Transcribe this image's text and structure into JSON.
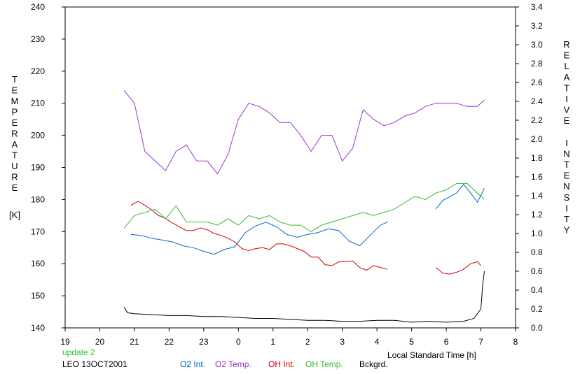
{
  "chart_data": {
    "type": "line",
    "xlabel": "Local Standard Time [h]",
    "ylabel_left": "TEMPERATURE",
    "ylabel_left_unit": "[K]",
    "ylabel_right": "RELATIVE INTENSITY",
    "x_tick_labels": [
      "19",
      "20",
      "21",
      "22",
      "23",
      "0",
      "1",
      "2",
      "3",
      "4",
      "5",
      "6",
      "7",
      "8"
    ],
    "x_ticks_hours": [
      19,
      20,
      21,
      22,
      23,
      24,
      25,
      26,
      27,
      28,
      29,
      30,
      31,
      32
    ],
    "xlim": [
      19,
      32
    ],
    "ylim_left": [
      140,
      240
    ],
    "y_left_ticks": [
      140,
      150,
      160,
      170,
      180,
      190,
      200,
      210,
      220,
      230,
      240
    ],
    "ylim_right": [
      0.0,
      3.4
    ],
    "y_right_ticks": [
      "0.0",
      "0.2",
      "0.4",
      "0.6",
      "0.8",
      "1.0",
      "1.2",
      "1.4",
      "1.6",
      "1.8",
      "2.0",
      "2.2",
      "2.4",
      "2.6",
      "2.8",
      "3.0",
      "3.2",
      "3.4"
    ],
    "grid": false,
    "series": [
      {
        "name": "O2 Temp.",
        "color": "#9933cc",
        "axis": "left",
        "x": [
          20.7,
          21.0,
          21.3,
          21.6,
          21.9,
          22.2,
          22.5,
          22.8,
          23.1,
          23.4,
          23.7,
          24.0,
          24.3,
          24.6,
          24.9,
          25.2,
          25.5,
          25.8,
          26.1,
          26.4,
          26.7,
          27.0,
          27.3,
          27.6,
          27.9,
          28.2,
          28.5,
          28.8,
          29.1,
          29.4,
          29.7,
          30.0,
          30.3,
          30.6,
          30.9,
          31.1
        ],
        "y": [
          214,
          210,
          195,
          192,
          189,
          195,
          197,
          192,
          192,
          188,
          194,
          205,
          210,
          209,
          207,
          204,
          204,
          200,
          195,
          200,
          200,
          192,
          196,
          208,
          205,
          203,
          204,
          206,
          207,
          209,
          210,
          210,
          210,
          209,
          209,
          211
        ]
      },
      {
        "name": "O2 Int.",
        "color": "#0066cc",
        "axis": "right",
        "x": [
          20.9,
          21.2,
          21.5,
          21.8,
          22.1,
          22.4,
          22.7,
          23.0,
          23.3,
          23.6,
          23.9,
          24.2,
          24.5,
          24.8,
          25.1,
          25.4,
          25.7,
          26.0,
          26.3,
          26.6,
          26.9,
          27.2,
          27.5,
          27.8,
          28.1,
          28.3
        ],
        "y": [
          0.99,
          0.98,
          0.95,
          0.93,
          0.91,
          0.87,
          0.85,
          0.81,
          0.78,
          0.83,
          0.86,
          1.01,
          1.08,
          1.12,
          1.07,
          0.99,
          0.96,
          0.99,
          1.01,
          1.05,
          1.03,
          0.92,
          0.87,
          0.98,
          1.09,
          1.12
        ]
      },
      {
        "name": "O2 Int.",
        "color": "#0066cc",
        "axis": "right",
        "x": [
          29.7,
          29.9,
          30.1,
          30.3,
          30.5,
          30.7,
          30.9,
          31.1
        ],
        "y": [
          1.26,
          1.35,
          1.39,
          1.43,
          1.52,
          1.43,
          1.33,
          1.48
        ]
      },
      {
        "name": "OH Int.",
        "color": "#cc0000",
        "axis": "right",
        "x": [
          20.9,
          21.1,
          21.3,
          21.5,
          21.7,
          21.9,
          22.1,
          22.3,
          22.5,
          22.7,
          22.9,
          23.1,
          23.3,
          23.5,
          23.7,
          23.9,
          24.1,
          24.3,
          24.5,
          24.7,
          24.9,
          25.1,
          25.3,
          25.5,
          25.7,
          25.9,
          26.1,
          26.3,
          26.5,
          26.7,
          26.9,
          27.1,
          27.3,
          27.5,
          27.7,
          27.9,
          28.1,
          28.3
        ],
        "y": [
          1.3,
          1.34,
          1.3,
          1.25,
          1.19,
          1.16,
          1.11,
          1.07,
          1.03,
          1.03,
          1.06,
          1.04,
          1.0,
          0.98,
          0.95,
          0.91,
          0.84,
          0.82,
          0.84,
          0.85,
          0.83,
          0.89,
          0.89,
          0.87,
          0.84,
          0.81,
          0.75,
          0.75,
          0.67,
          0.66,
          0.7,
          0.7,
          0.71,
          0.64,
          0.61,
          0.66,
          0.64,
          0.62
        ]
      },
      {
        "name": "OH Int.",
        "color": "#cc0000",
        "axis": "right",
        "x": [
          29.7,
          29.9,
          30.1,
          30.3,
          30.5,
          30.7,
          30.9,
          31.0
        ],
        "y": [
          0.64,
          0.58,
          0.57,
          0.59,
          0.62,
          0.68,
          0.7,
          0.66
        ]
      },
      {
        "name": "OH Temp.",
        "color": "#33bb33",
        "axis": "left",
        "x": [
          20.7,
          21.0,
          21.3,
          21.6,
          21.9,
          22.2,
          22.5,
          22.8,
          23.1,
          23.4,
          23.7,
          24.0,
          24.3,
          24.6,
          24.9,
          25.2,
          25.5,
          25.8,
          26.1,
          26.4,
          26.7,
          27.0,
          27.3,
          27.6,
          27.9,
          28.2,
          28.5,
          28.8,
          29.1,
          29.4,
          29.7,
          30.0,
          30.3,
          30.6,
          30.9,
          31.1
        ],
        "y": [
          171,
          175,
          176,
          177,
          174,
          178,
          173,
          173,
          173,
          172,
          174,
          172,
          175,
          174,
          175,
          173,
          172,
          172,
          170,
          172,
          173,
          174,
          175,
          176,
          175,
          176,
          177,
          179,
          181,
          180,
          182,
          183,
          185,
          185,
          182,
          180
        ]
      },
      {
        "name": "Bckgrd.",
        "color": "#000000",
        "axis": "right",
        "x": [
          20.7,
          20.8,
          21.0,
          21.5,
          22.0,
          22.5,
          23.0,
          23.5,
          24.0,
          24.5,
          25.0,
          25.5,
          26.0,
          26.5,
          27.0,
          27.5,
          28.0,
          28.5,
          29.0,
          29.5,
          30.0,
          30.5,
          30.8,
          31.0,
          31.05,
          31.1
        ],
        "y": [
          0.22,
          0.16,
          0.15,
          0.14,
          0.13,
          0.13,
          0.12,
          0.12,
          0.11,
          0.1,
          0.1,
          0.09,
          0.08,
          0.08,
          0.07,
          0.07,
          0.08,
          0.08,
          0.06,
          0.07,
          0.06,
          0.07,
          0.1,
          0.2,
          0.45,
          0.6
        ]
      }
    ]
  },
  "footer": {
    "update_label": "update 2",
    "station_date": "LEO 13OCT2001",
    "legend": [
      {
        "label": "O2 Int.",
        "color": "#0066cc"
      },
      {
        "label": "O2 Temp.",
        "color": "#9933cc"
      },
      {
        "label": "OH Int.",
        "color": "#cc0000"
      },
      {
        "label": "OH Temp.",
        "color": "#33bb33"
      },
      {
        "label": "Bckgrd.",
        "color": "#000000"
      }
    ]
  }
}
